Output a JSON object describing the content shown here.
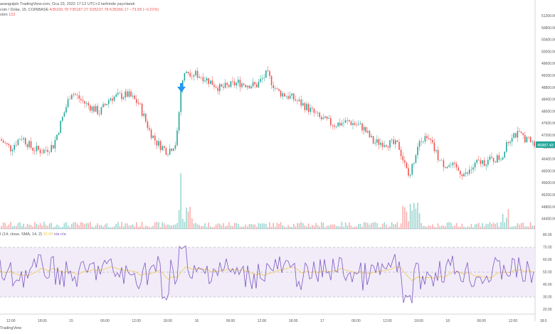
{
  "header": {
    "line1": "asangulpin TradingView.com, Oca 23, 2022 17:12 UTC+3 tarihinde yayınlandı",
    "symbol": "coin / Dolar, 15, COINBASE",
    "ohlc": "A35226.78 Y35187.27 D35237.78 K35266.17 −73.58 (−0.21%)",
    "volume_label": "ıdım",
    "volume_value": "122"
  },
  "rsi_header": {
    "label": "I (14, close, SMA, 14, 2)",
    "value": "35.09",
    "extra": "n/a n/a"
  },
  "footer": {
    "label": "TradingView"
  },
  "price_axis": {
    "ticks": [
      "51200.00",
      "50800.00",
      "50400.00",
      "50000.00",
      "49600.00",
      "49200.00",
      "48800.00",
      "48400.00",
      "48000.00",
      "47600.00",
      "47200.00",
      "46800.00",
      "46400.00",
      "46000.00",
      "45600.00",
      "45200.00",
      "44800.00",
      "44400.00"
    ],
    "current": "46887.43"
  },
  "rsi_axis": {
    "ticks": [
      "80.00",
      "70.00",
      "60.00",
      "50.00",
      "40.00",
      "30.00",
      "20.00"
    ]
  },
  "time_axis": {
    "labels": [
      "12:00",
      "18:00",
      "15",
      "06:00",
      "12:00",
      "18:00",
      "16",
      "06:00",
      "12:00",
      "18:00",
      "17",
      "06:00",
      "12:00",
      "18:00",
      "18",
      "06:00",
      "12:00",
      "18:0"
    ]
  },
  "arrow": {
    "icon": "down-arrow-icon",
    "color": "#2196f3"
  },
  "colors": {
    "up": "#26a69a",
    "down": "#ef5350",
    "rsi": "#7e57c2",
    "rsi_ma": "#f2c94c",
    "rsi_band": "#ede7f6"
  }
}
